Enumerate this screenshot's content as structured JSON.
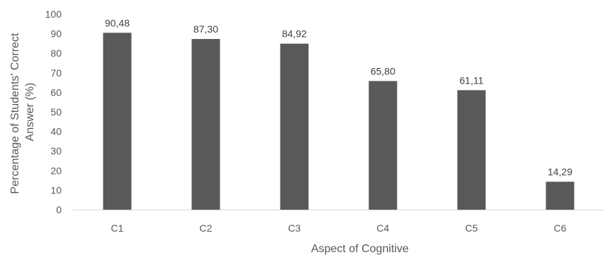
{
  "chart_data": {
    "type": "bar",
    "title": "",
    "xlabel": "Aspect of Cognitive",
    "ylabel_lines": [
      "Percentage of Students' Correct",
      "Answer (%)"
    ],
    "categories": [
      "C1",
      "C2",
      "C3",
      "C4",
      "C5",
      "C6"
    ],
    "values": [
      90.48,
      87.3,
      84.92,
      65.8,
      61.11,
      14.29
    ],
    "value_labels": [
      "90,48",
      "87,30",
      "84,92",
      "65,80",
      "61,11",
      "14,29"
    ],
    "ylim": [
      0,
      100
    ],
    "yticks": [
      "0",
      "10",
      "20",
      "30",
      "40",
      "50",
      "60",
      "70",
      "80",
      "90",
      "100"
    ],
    "grid": false,
    "legend": "none",
    "bar_color": "#595959"
  }
}
